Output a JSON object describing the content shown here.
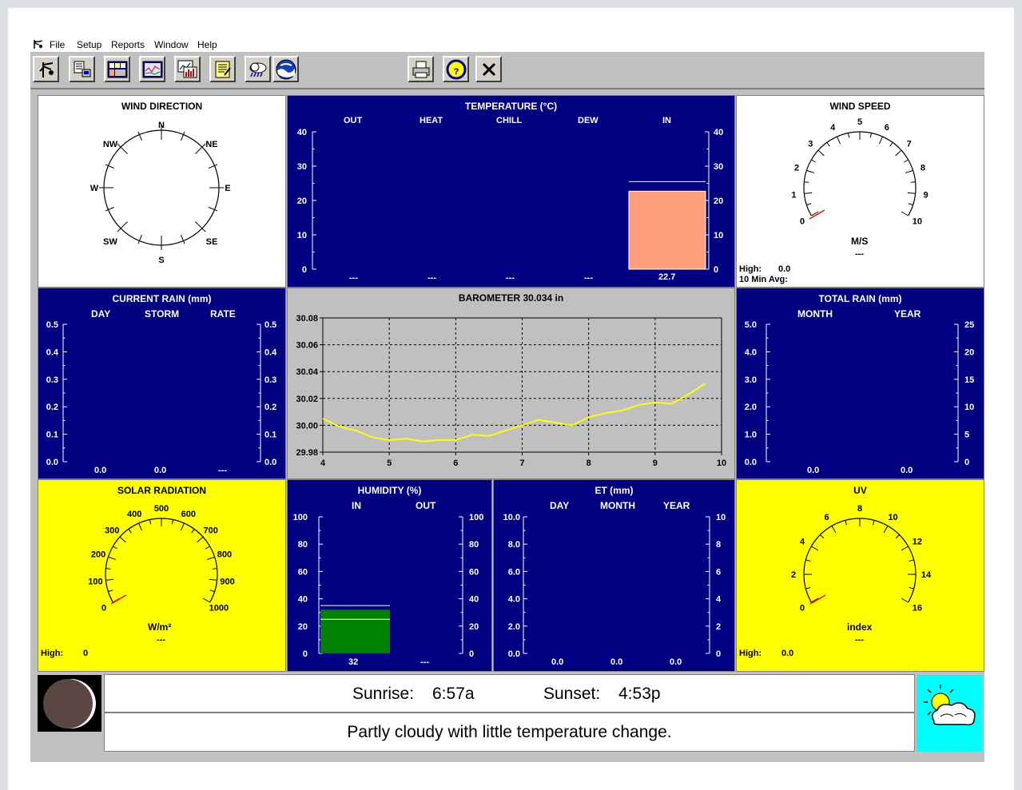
{
  "menu": [
    "File",
    "Setup",
    "Reports",
    "Window",
    "Help"
  ],
  "toolbar_icons": [
    "anemometer-icon",
    "station-data-icon",
    "console-icon",
    "graph-icon",
    "summary-report-icon",
    "notes-icon",
    "weather-forecast-icon",
    "noaa-icon",
    "print-icon",
    "help-icon",
    "close-icon"
  ],
  "wind_direction": {
    "title": "WIND DIRECTION",
    "labels": [
      "N",
      "NE",
      "E",
      "SE",
      "S",
      "SW",
      "W",
      "NW"
    ]
  },
  "temperature": {
    "title": "TEMPERATURE (°C)",
    "columns": [
      "OUT",
      "HEAT",
      "CHILL",
      "DEW",
      "IN"
    ],
    "ticks": [
      "40",
      "30",
      "20",
      "10",
      "0"
    ],
    "values": [
      "---",
      "---",
      "---",
      "---",
      "22.7"
    ],
    "in_value": 22.7,
    "in_high": 25.5,
    "bar_color": "#ffa07a"
  },
  "wind_speed": {
    "title": "WIND SPEED",
    "ticks": [
      "0",
      "1",
      "2",
      "3",
      "4",
      "5",
      "6",
      "7",
      "8",
      "9",
      "10"
    ],
    "unit": "M/S",
    "value": "---",
    "high_label": "High:",
    "high_value": "0.0",
    "avg_label": "10 Min Avg:"
  },
  "current_rain": {
    "title": "CURRENT RAIN  (mm)",
    "columns": [
      "DAY",
      "STORM",
      "RATE"
    ],
    "ticks": [
      "0.5",
      "0.4",
      "0.3",
      "0.2",
      "0.1",
      "0.0"
    ],
    "values": [
      "0.0",
      "0.0",
      "---"
    ]
  },
  "barometer": {
    "title": "BAROMETER 30.034 in",
    "chart_data": {
      "type": "line",
      "x": [
        4,
        4.25,
        4.5,
        4.75,
        5,
        5.25,
        5.5,
        5.75,
        6,
        6.25,
        6.5,
        6.75,
        7,
        7.25,
        7.5,
        7.75,
        8,
        8.25,
        8.5,
        8.75,
        9,
        9.25,
        9.5,
        9.75
      ],
      "y": [
        30.005,
        29.999,
        29.996,
        29.991,
        29.989,
        29.99,
        29.988,
        29.989,
        29.989,
        29.993,
        29.992,
        29.996,
        30.0,
        30.004,
        30.002,
        30.0,
        30.006,
        30.009,
        30.011,
        30.015,
        30.017,
        30.016,
        30.023,
        30.031
      ],
      "xlim": [
        4,
        10
      ],
      "ylim": [
        29.98,
        30.08
      ],
      "xticks": [
        "4",
        "5",
        "6",
        "7",
        "8",
        "9",
        "10"
      ],
      "yticks": [
        "30.08",
        "30.06",
        "30.04",
        "30.02",
        "30.00",
        "29.98"
      ],
      "grid": true,
      "line_color": "#ffff00"
    }
  },
  "total_rain": {
    "title": "TOTAL RAIN  (mm)",
    "columns": [
      "MONTH",
      "YEAR"
    ],
    "left_ticks": [
      "5.0",
      "4.0",
      "3.0",
      "2.0",
      "1.0",
      "0.0"
    ],
    "right_ticks": [
      "25",
      "20",
      "15",
      "10",
      "5",
      "0"
    ],
    "values": [
      "0.0",
      "0.0"
    ]
  },
  "solar": {
    "title": "SOLAR RADIATION",
    "ticks": [
      "0",
      "100",
      "200",
      "300",
      "400",
      "500",
      "600",
      "700",
      "800",
      "900",
      "1000"
    ],
    "unit": "W/m²",
    "value": "---",
    "high_label": "High:",
    "high_value": "0"
  },
  "humidity": {
    "title": "HUMIDITY  (%)",
    "columns": [
      "IN",
      "OUT"
    ],
    "ticks": [
      "100",
      "80",
      "60",
      "40",
      "20",
      "0"
    ],
    "values": [
      "32",
      "---"
    ],
    "in_value": 32,
    "in_high": 35,
    "in_low": 25,
    "bar_color": "#008000"
  },
  "et": {
    "title": "ET  (mm)",
    "columns": [
      "DAY",
      "MONTH",
      "YEAR"
    ],
    "left_ticks": [
      "10.0",
      "8.0",
      "6.0",
      "4.0",
      "2.0",
      "0.0"
    ],
    "right_ticks": [
      "10",
      "8",
      "6",
      "4",
      "2",
      "0"
    ],
    "values": [
      "0.0",
      "0.0",
      "0.0"
    ]
  },
  "uv": {
    "title": "UV",
    "ticks": [
      "0",
      "2",
      "4",
      "6",
      "8",
      "10",
      "12",
      "14",
      "16"
    ],
    "unit": "index",
    "value": "---",
    "high_label": "High:",
    "high_value": "0.0"
  },
  "footer": {
    "sunrise_label": "Sunrise:",
    "sunrise": "6:57a",
    "sunset_label": "Sunset:",
    "sunset": "4:53p",
    "forecast": "Partly cloudy with little temperature change."
  }
}
